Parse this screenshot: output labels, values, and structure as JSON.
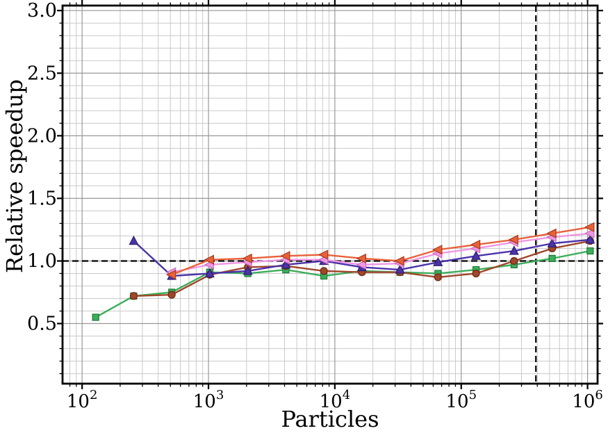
{
  "figure": {
    "background": "#ffffff"
  },
  "chart_data": {
    "type": "line",
    "title": "",
    "xlabel": "Particles",
    "ylabel": "Relative speedup",
    "x_scale": "log",
    "y_scale": "linear",
    "xlim": [
      70,
      1200000
    ],
    "ylim": [
      0.02,
      3.04
    ],
    "x_major_ticks": [
      100,
      1000,
      10000,
      100000,
      1000000
    ],
    "x_tick_exponents": [
      2,
      3,
      4,
      5,
      6
    ],
    "y_major_ticks": [
      0.5,
      1.0,
      1.5,
      2.0,
      2.5,
      3.0
    ],
    "y_minor_step": 0.1,
    "grid": "both",
    "legend": "none",
    "grid_major_color": "#989898",
    "grid_minor_color": "#c9c9c9",
    "reference_lines": [
      {
        "orientation": "horizontal",
        "value": 1.0,
        "style": "dashed",
        "color": "#000000"
      },
      {
        "orientation": "vertical",
        "value": 390000,
        "style": "dashed",
        "color": "#000000"
      }
    ],
    "series": [
      {
        "name": "squares-green",
        "marker": "square",
        "color": "#3cae5b",
        "edge": "#1d7a36",
        "points": [
          [
            128,
            0.55
          ],
          [
            256,
            0.72
          ],
          [
            512,
            0.75
          ],
          [
            1024,
            0.91
          ],
          [
            2048,
            0.9
          ],
          [
            4096,
            0.93
          ],
          [
            8192,
            0.88
          ],
          [
            16384,
            0.92
          ],
          [
            32768,
            0.91
          ],
          [
            65536,
            0.9
          ],
          [
            131072,
            0.93
          ],
          [
            262144,
            0.97
          ],
          [
            524288,
            1.02
          ],
          [
            1048576,
            1.08
          ]
        ]
      },
      {
        "name": "circles-brown",
        "marker": "circle",
        "color": "#a0462a",
        "edge": "#6b2c17",
        "points": [
          [
            256,
            0.72
          ],
          [
            512,
            0.73
          ],
          [
            1024,
            0.89
          ],
          [
            2048,
            0.95
          ],
          [
            4096,
            0.96
          ],
          [
            8192,
            0.92
          ],
          [
            16384,
            0.91
          ],
          [
            32768,
            0.91
          ],
          [
            65536,
            0.87
          ],
          [
            131072,
            0.9
          ],
          [
            262144,
            1.0
          ],
          [
            524288,
            1.1
          ],
          [
            1048576,
            1.16
          ]
        ]
      },
      {
        "name": "triangles-purple",
        "marker": "triangle-up",
        "color": "#4b33aa",
        "edge": "#2c1c6e",
        "points": [
          [
            256,
            1.16
          ],
          [
            512,
            0.88
          ],
          [
            1024,
            0.9
          ],
          [
            2048,
            0.92
          ],
          [
            4096,
            0.97
          ],
          [
            8192,
            1.0
          ],
          [
            16384,
            0.95
          ],
          [
            32768,
            0.93
          ],
          [
            65536,
            0.99
          ],
          [
            131072,
            1.04
          ],
          [
            262144,
            1.08
          ],
          [
            524288,
            1.14
          ],
          [
            1048576,
            1.17
          ]
        ]
      },
      {
        "name": "left-triangles-pink",
        "marker": "triangle-left",
        "color": "#ef97e4",
        "edge": "#c96cbc",
        "points": [
          [
            512,
            0.91
          ],
          [
            1024,
            0.97
          ],
          [
            2048,
            0.99
          ],
          [
            4096,
            1.01
          ],
          [
            8192,
            1.01
          ],
          [
            16384,
            0.97
          ],
          [
            32768,
            0.98
          ],
          [
            65536,
            1.06
          ],
          [
            131072,
            1.1
          ],
          [
            262144,
            1.15
          ],
          [
            524288,
            1.19
          ],
          [
            1048576,
            1.22
          ]
        ]
      },
      {
        "name": "left-triangles-orange",
        "marker": "triangle-left",
        "color": "#e8613a",
        "edge": "#a83a1c",
        "points": [
          [
            512,
            0.89
          ],
          [
            1024,
            1.01
          ],
          [
            2048,
            1.02
          ],
          [
            4096,
            1.04
          ],
          [
            8192,
            1.05
          ],
          [
            16384,
            1.02
          ],
          [
            32768,
            1.0
          ],
          [
            65536,
            1.09
          ],
          [
            131072,
            1.13
          ],
          [
            262144,
            1.17
          ],
          [
            524288,
            1.22
          ],
          [
            1048576,
            1.27
          ]
        ]
      }
    ]
  }
}
